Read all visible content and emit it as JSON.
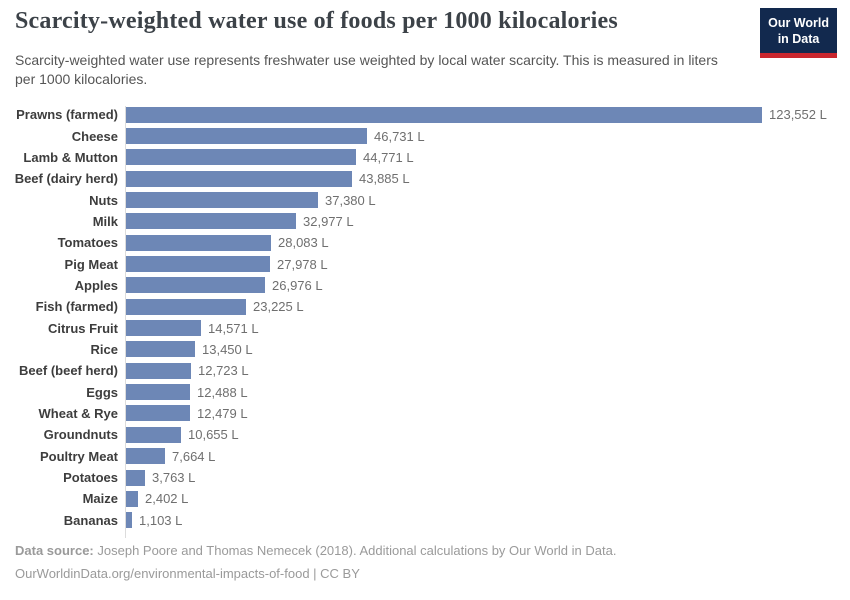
{
  "header": {
    "title": "Scarcity-weighted water use of foods per 1000 kilocalories",
    "subtitle": "Scarcity-weighted water use represents freshwater use weighted by local water scarcity. This is measured in liters per 1000 kilocalories.",
    "logo": {
      "line1": "Our World",
      "line2": "in Data"
    }
  },
  "chart_data": {
    "type": "bar",
    "orientation": "horizontal",
    "title": "Scarcity-weighted water use of foods per 1000 kilocalories",
    "unit": "liters per 1000 kilocalories",
    "value_suffix": " L",
    "xlim": [
      0,
      123552
    ],
    "grid": false,
    "legend": "none",
    "categories": [
      "Prawns (farmed)",
      "Cheese",
      "Lamb & Mutton",
      "Beef (dairy herd)",
      "Nuts",
      "Milk",
      "Tomatoes",
      "Pig Meat",
      "Apples",
      "Fish (farmed)",
      "Citrus Fruit",
      "Rice",
      "Beef (beef herd)",
      "Eggs",
      "Wheat & Rye",
      "Groundnuts",
      "Poultry Meat",
      "Potatoes",
      "Maize",
      "Bananas"
    ],
    "values": [
      123552,
      46731,
      44771,
      43885,
      37380,
      32977,
      28083,
      27978,
      26976,
      23225,
      14571,
      13450,
      12723,
      12488,
      12479,
      10655,
      7664,
      3763,
      2402,
      1103
    ],
    "value_labels": [
      "123,552 L",
      "46,731 L",
      "44,771 L",
      "43,885 L",
      "37,380 L",
      "32,977 L",
      "28,083 L",
      "27,978 L",
      "26,976 L",
      "23,225 L",
      "14,571 L",
      "13,450 L",
      "12,723 L",
      "12,488 L",
      "12,479 L",
      "10,655 L",
      "7,664 L",
      "3,763 L",
      "2,402 L",
      "1,103 L"
    ]
  },
  "footer": {
    "source_label": "Data source:",
    "source_text": "Joseph Poore and Thomas Nemecek (2018). Additional calculations by Our World in Data.",
    "license_text": "OurWorldinData.org/environmental-impacts-of-food | CC BY"
  },
  "colors": {
    "bar": "#6d87b6",
    "axis": "#dcdcdc",
    "logo_bg": "#12294e",
    "logo_stripe": "#c9262e",
    "title_text": "#3c4248",
    "subtitle_text": "#555555",
    "category_label": "#3d3d3d",
    "value_label": "#6f6f6f",
    "footer_text": "#9a9a9a"
  }
}
